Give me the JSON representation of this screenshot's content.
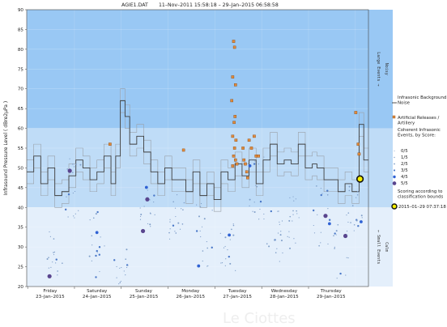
{
  "header": {
    "file": "AGIE1.DAT",
    "range": "11–Nov–2011 15:58:18   –   29–Jan–2015 06:58:58"
  },
  "colors": {
    "band_large": "#99c8f4",
    "band_noisy": "#bfdcf7",
    "band_calm": "#e4effb",
    "bg_line": "#3d3d3d",
    "bg_line_light": "#9aa0a8",
    "artificial": "#e08a3c",
    "event_small": "#7f9ec8",
    "event_mid": "#4a78c8",
    "event_high": "#2f62d4",
    "event_top": "#59458e",
    "highlight": "#f5ef00"
  },
  "chart_data": {
    "type": "scatter",
    "title": "AGIE1.DAT   11–Nov–2011 15:58:18   –   29–Jan–2015 06:58:58",
    "ylabel": "Infrasound Pressure Level  ( dBre2μPa )",
    "xlabel": "",
    "ylim": [
      20,
      90
    ],
    "xlim": [
      0,
      7.3
    ],
    "yticks": [
      20,
      25,
      30,
      35,
      40,
      45,
      50,
      55,
      60,
      65,
      70,
      75,
      80,
      85,
      90
    ],
    "x_days": [
      {
        "day": "Friday",
        "date": "23–Jan–2015"
      },
      {
        "day": "Saturday",
        "date": "24–Jan–2015"
      },
      {
        "day": "Sunday",
        "date": "25–Jan–2015"
      },
      {
        "day": "Monday",
        "date": "26–Jan–2015"
      },
      {
        "day": "Tuesday",
        "date": "27–Jan–2015"
      },
      {
        "day": "Wednesday",
        "date": "28–Jan–2015"
      },
      {
        "day": "Thursday",
        "date": "29–Jan–2015"
      }
    ],
    "bands": [
      {
        "from": 60,
        "to": 90,
        "label": "Large Events  →",
        "sub": "Noisy"
      },
      {
        "from": 40,
        "to": 60,
        "label": "",
        "sub": ""
      },
      {
        "from": 20,
        "to": 40,
        "label": "←  Small Events",
        "sub": "Calm"
      }
    ],
    "background_noise": {
      "name": "Infrasonic Background Noise",
      "x": [
        0,
        0.15,
        0.3,
        0.45,
        0.6,
        0.75,
        0.9,
        1.05,
        1.2,
        1.35,
        1.5,
        1.65,
        1.8,
        1.9,
        2.0,
        2.1,
        2.2,
        2.35,
        2.5,
        2.65,
        2.8,
        2.95,
        3.1,
        3.25,
        3.4,
        3.55,
        3.7,
        3.85,
        4.0,
        4.15,
        4.3,
        4.45,
        4.6,
        4.75,
        4.9,
        5.05,
        5.2,
        5.35,
        5.5,
        5.65,
        5.8,
        5.95,
        6.1,
        6.2,
        6.35,
        6.5,
        6.65,
        6.8,
        6.95,
        7.1,
        7.2
      ],
      "y": [
        49,
        53,
        46,
        50,
        43,
        44,
        48,
        52,
        50,
        47,
        49,
        53,
        46,
        53,
        67,
        63,
        56,
        58,
        54,
        49,
        46,
        50,
        47,
        47,
        44,
        49,
        43,
        46,
        42,
        49,
        47,
        51,
        48,
        52,
        46,
        52,
        56,
        51,
        52,
        51,
        56,
        50,
        51,
        50,
        47,
        47,
        44,
        46,
        44,
        61,
        52
      ]
    },
    "artificial_releases": {
      "name": "Artificial Releases / Artillery",
      "points": [
        [
          1.78,
          56
        ],
        [
          3.35,
          54.5
        ],
        [
          4.42,
          82
        ],
        [
          4.44,
          80.5
        ],
        [
          4.4,
          73
        ],
        [
          4.46,
          71
        ],
        [
          4.38,
          67
        ],
        [
          4.45,
          63
        ],
        [
          4.43,
          61.5
        ],
        [
          4.4,
          58
        ],
        [
          4.47,
          57
        ],
        [
          4.44,
          55
        ],
        [
          4.42,
          53
        ],
        [
          4.46,
          52
        ],
        [
          4.4,
          50.5
        ],
        [
          4.49,
          51
        ],
        [
          4.62,
          55
        ],
        [
          4.64,
          52
        ],
        [
          4.67,
          51
        ],
        [
          4.7,
          49
        ],
        [
          4.72,
          47.5
        ],
        [
          4.75,
          57
        ],
        [
          4.8,
          55
        ],
        [
          4.86,
          58
        ],
        [
          4.9,
          53
        ],
        [
          4.95,
          53
        ],
        [
          7.03,
          64
        ],
        [
          7.08,
          56
        ],
        [
          7.1,
          53.5
        ]
      ]
    },
    "legend_title": "Coherent Infrasonic Events, by Score:",
    "score_legend": [
      "0/5",
      "1/5",
      "2/5",
      "3/5",
      "4/5",
      "5/5"
    ],
    "scoring_note": "Scoring according to classification bounds",
    "highlight": {
      "label": "2015–01–29 07:37:18",
      "x": 7.12,
      "y": 47.2
    }
  },
  "watermark": "Le Ciottes"
}
